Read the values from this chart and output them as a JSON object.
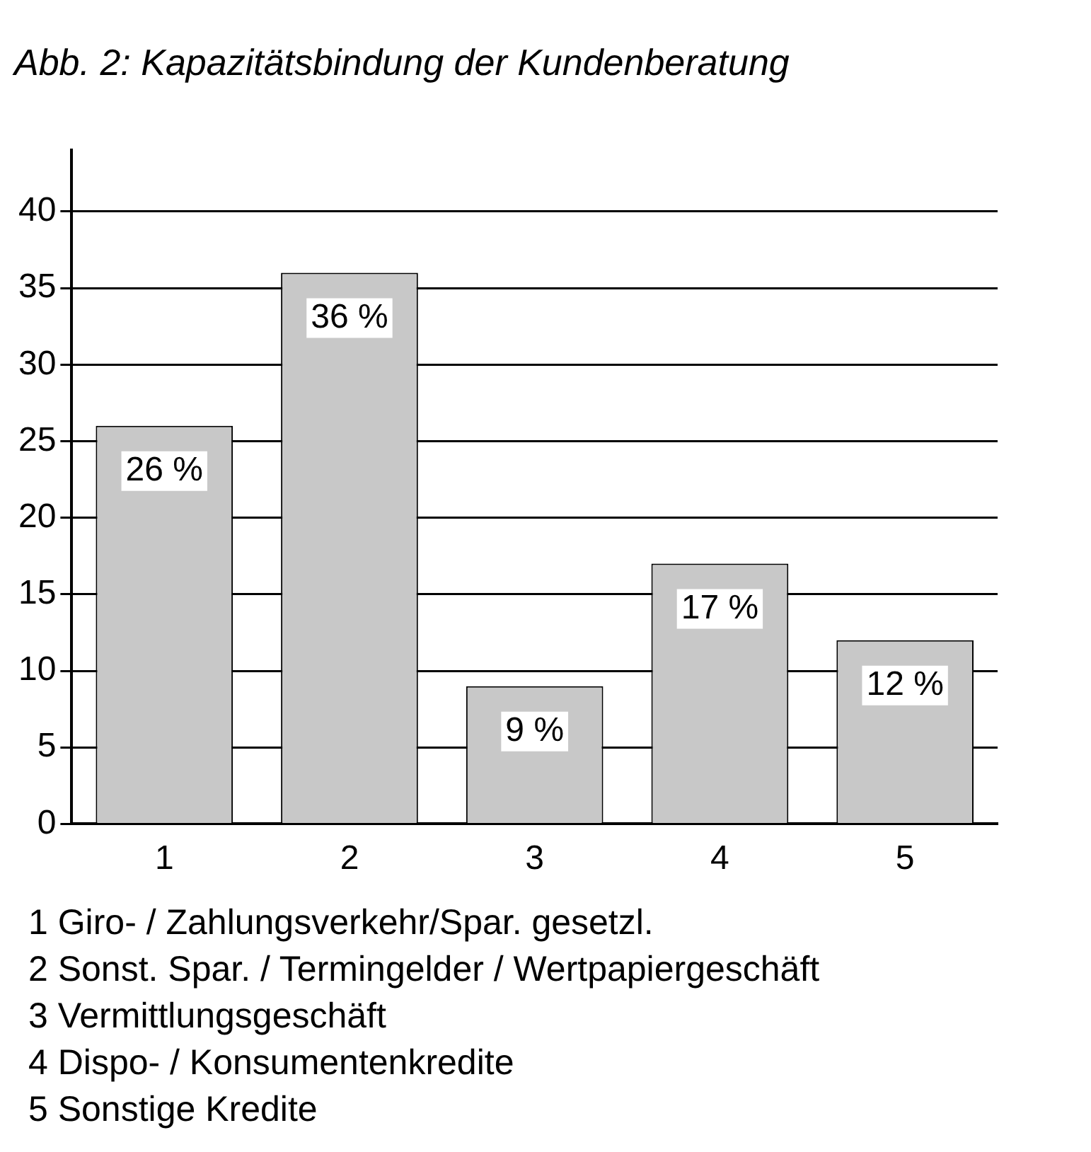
{
  "chart_data": {
    "type": "bar",
    "title": "Abb. 2: Kapazitätsbindung der Kundenberatung",
    "categories": [
      "1",
      "2",
      "3",
      "4",
      "5"
    ],
    "values": [
      26,
      36,
      9,
      17,
      12
    ],
    "value_labels": [
      "26 %",
      "36 %",
      "9 %",
      "17 %",
      "12 %"
    ],
    "color": "#c8c8c8",
    "ylim": [
      0,
      44
    ],
    "yticks": [
      0,
      5,
      10,
      15,
      20,
      25,
      30,
      35,
      40
    ],
    "grid": "y",
    "legend": false,
    "annotations": [
      "1 Giro- / Zahlungsverkehr/Spar. gesetzl.",
      "2 Sonst. Spar. / Termingelder / Wertpapiergeschäft",
      "3 Vermittlungsgeschäft",
      "4 Dispo- / Konsumentenkredite",
      "5 Sonstige Kredite"
    ]
  }
}
